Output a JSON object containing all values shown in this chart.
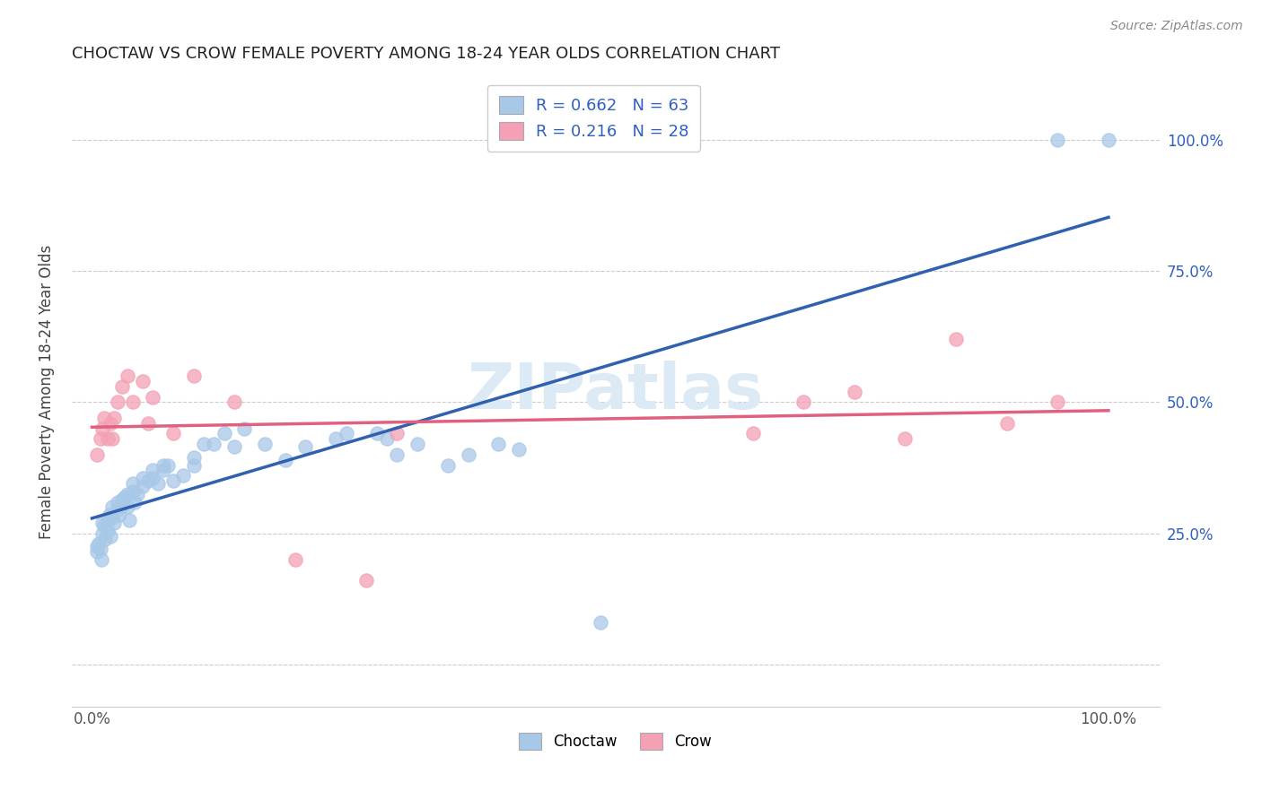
{
  "title": "CHOCTAW VS CROW FEMALE POVERTY AMONG 18-24 YEAR OLDS CORRELATION CHART",
  "source": "Source: ZipAtlas.com",
  "ylabel": "Female Poverty Among 18-24 Year Olds",
  "choctaw_color": "#a8c8e8",
  "crow_color": "#f4a0b5",
  "choctaw_line_color": "#3060b0",
  "crow_line_color": "#e06080",
  "choctaw_R": 0.662,
  "choctaw_N": 63,
  "crow_R": 0.216,
  "crow_N": 28,
  "legend_color": "#3060c0",
  "watermark_color": "#dbeaf5",
  "choctaw_x": [
    0.005,
    0.005,
    0.007,
    0.008,
    0.009,
    0.01,
    0.01,
    0.012,
    0.013,
    0.015,
    0.015,
    0.017,
    0.018,
    0.02,
    0.02,
    0.022,
    0.025,
    0.025,
    0.027,
    0.03,
    0.03,
    0.032,
    0.035,
    0.035,
    0.037,
    0.04,
    0.04,
    0.042,
    0.045,
    0.05,
    0.05,
    0.055,
    0.06,
    0.06,
    0.065,
    0.07,
    0.07,
    0.075,
    0.08,
    0.09,
    0.1,
    0.1,
    0.11,
    0.12,
    0.13,
    0.14,
    0.15,
    0.17,
    0.19,
    0.21,
    0.24,
    0.25,
    0.28,
    0.29,
    0.3,
    0.32,
    0.35,
    0.37,
    0.4,
    0.42,
    0.5,
    0.95,
    1.0
  ],
  "choctaw_y": [
    0.215,
    0.225,
    0.23,
    0.22,
    0.2,
    0.25,
    0.27,
    0.265,
    0.24,
    0.275,
    0.255,
    0.285,
    0.245,
    0.3,
    0.28,
    0.27,
    0.295,
    0.31,
    0.285,
    0.305,
    0.315,
    0.32,
    0.325,
    0.3,
    0.275,
    0.33,
    0.345,
    0.31,
    0.325,
    0.34,
    0.355,
    0.35,
    0.37,
    0.355,
    0.345,
    0.37,
    0.38,
    0.38,
    0.35,
    0.36,
    0.38,
    0.395,
    0.42,
    0.42,
    0.44,
    0.415,
    0.45,
    0.42,
    0.39,
    0.415,
    0.43,
    0.44,
    0.44,
    0.43,
    0.4,
    0.42,
    0.38,
    0.4,
    0.42,
    0.41,
    0.08,
    1.0,
    1.0
  ],
  "crow_x": [
    0.005,
    0.008,
    0.01,
    0.012,
    0.015,
    0.018,
    0.02,
    0.022,
    0.025,
    0.03,
    0.035,
    0.04,
    0.05,
    0.055,
    0.06,
    0.08,
    0.1,
    0.14,
    0.2,
    0.27,
    0.3,
    0.65,
    0.7,
    0.75,
    0.8,
    0.85,
    0.9,
    0.95
  ],
  "crow_y": [
    0.4,
    0.43,
    0.45,
    0.47,
    0.43,
    0.46,
    0.43,
    0.47,
    0.5,
    0.53,
    0.55,
    0.5,
    0.54,
    0.46,
    0.51,
    0.44,
    0.55,
    0.5,
    0.2,
    0.16,
    0.44,
    0.44,
    0.5,
    0.52,
    0.43,
    0.62,
    0.46,
    0.5
  ],
  "xlim": [
    -0.02,
    1.05
  ],
  "ylim": [
    -0.08,
    1.12
  ],
  "yticks": [
    0.0,
    0.25,
    0.5,
    0.75,
    1.0
  ],
  "ytick_labels": [
    "",
    "25.0%",
    "50.0%",
    "75.0%",
    "100.0%"
  ],
  "xtick_vals": [
    0.0,
    0.1,
    0.2,
    0.3,
    0.4,
    0.5,
    0.6,
    0.7,
    0.8,
    0.9,
    1.0
  ],
  "xtick_labels": [
    "0.0%",
    "",
    "",
    "",
    "",
    "",
    "",
    "",
    "",
    "",
    "100.0%"
  ]
}
